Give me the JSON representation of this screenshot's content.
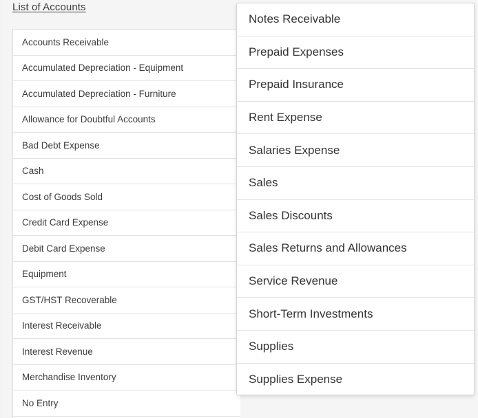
{
  "list": {
    "title": "List of Accounts",
    "items": [
      "Accounts Receivable",
      "Accumulated Depreciation - Equipment",
      "Accumulated Depreciation - Furniture",
      "Allowance for Doubtful Accounts",
      "Bad Debt Expense",
      "Cash",
      "Cost of Goods Sold",
      "Credit Card Expense",
      "Debit Card Expense",
      "Equipment",
      "GST/HST Recoverable",
      "Interest Receivable",
      "Interest Revenue",
      "Merchandise Inventory",
      "No Entry"
    ]
  },
  "dropdown": {
    "items": [
      "Notes Receivable",
      "Prepaid Expenses",
      "Prepaid Insurance",
      "Rent Expense",
      "Salaries Expense",
      "Sales",
      "Sales Discounts",
      "Sales Returns and Allowances",
      "Service Revenue",
      "Short-Term Investments",
      "Supplies",
      "Supplies Expense"
    ]
  }
}
